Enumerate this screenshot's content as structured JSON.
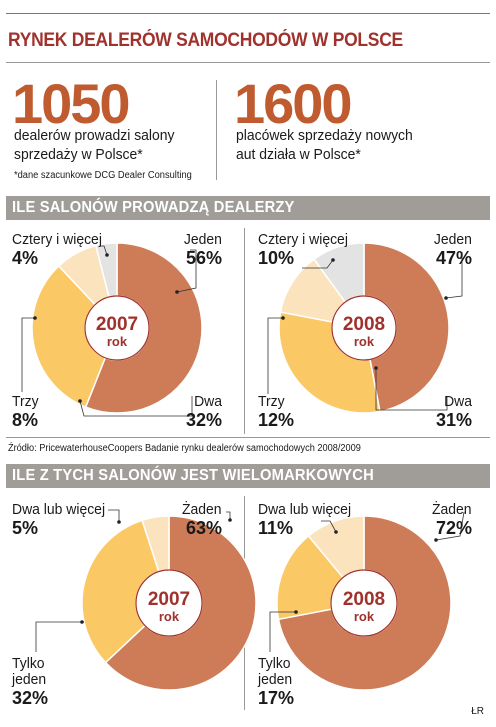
{
  "title": "RYNEK DEALERÓW SAMOCHODÓW W POLSCE",
  "stat1": {
    "number": "1050",
    "text_line1": "dealerów prowadzi salony",
    "text_line2": "sprzedaży w Polsce*",
    "footnote": "*dane szacunkowe DCG Dealer Consulting"
  },
  "stat2": {
    "number": "1600",
    "text_line1": "placówek sprzedaży nowych",
    "text_line2": "aut działa w Polsce*"
  },
  "section1_title": "ILE SALONÓW PROWADZĄ DEALERZY",
  "section2_title": "ILE Z TYCH SALONÓW JEST WIELOMARKOWYCH",
  "source": "Źródło: PricewaterhouseCoopers Badanie rynku dealerów samochodowych 2008/2009",
  "credit": "ŁR",
  "colors": {
    "accent": "#a0322d",
    "bignum": "#bf5b2f",
    "jeden": "#cd7c57",
    "dwa": "#fbc866",
    "trzy": "#fbe3bd",
    "cztery": "#e3e3e3",
    "band": "#a09c98"
  },
  "chart_data": [
    {
      "type": "pie",
      "center_year": "2007",
      "center_unit": "rok",
      "labels": [
        {
          "name": "Jeden",
          "value": 56,
          "text": "56%"
        },
        {
          "name": "Dwa",
          "value": 32,
          "text": "32%"
        },
        {
          "name": "Trzy",
          "value": 8,
          "text": "8%"
        },
        {
          "name": "Cztery i więcej",
          "value": 4,
          "text": "4%"
        }
      ]
    },
    {
      "type": "pie",
      "center_year": "2008",
      "center_unit": "rok",
      "labels": [
        {
          "name": "Jeden",
          "value": 47,
          "text": "47%"
        },
        {
          "name": "Dwa",
          "value": 31,
          "text": "31%"
        },
        {
          "name": "Trzy",
          "value": 12,
          "text": "12%"
        },
        {
          "name": "Cztery i więcej",
          "value": 10,
          "text": "10%"
        }
      ]
    },
    {
      "type": "pie",
      "center_year": "2007",
      "center_unit": "rok",
      "labels": [
        {
          "name": "Żaden",
          "value": 63,
          "text": "63%"
        },
        {
          "name": "Tylko",
          "name2": "jeden",
          "value": 32,
          "text": "32%"
        },
        {
          "name": "Dwa lub więcej",
          "value": 5,
          "text": "5%"
        }
      ]
    },
    {
      "type": "pie",
      "center_year": "2008",
      "center_unit": "rok",
      "labels": [
        {
          "name": "Żaden",
          "value": 72,
          "text": "72%"
        },
        {
          "name": "Tylko",
          "name2": "jeden",
          "value": 17,
          "text": "17%"
        },
        {
          "name": "Dwa lub więcej",
          "value": 11,
          "text": "11%"
        }
      ]
    }
  ]
}
